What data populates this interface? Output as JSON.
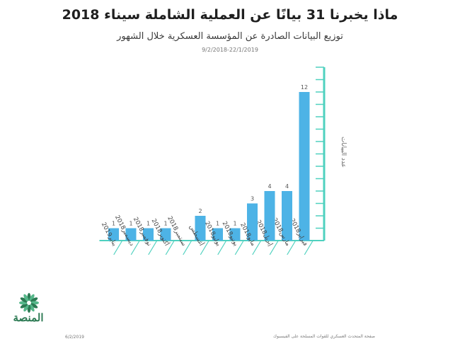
{
  "header": {
    "title": "ماذا يخبرنا 31 بيانًا عن العملية الشاملة سيناء 2018",
    "subtitle": "توزيع البيانات الصادرة عن المؤسسة العسكرية خلال الشهور",
    "period": "9/2/2018-22/1/2019"
  },
  "footer": {
    "date": "6/2/2019",
    "source": "صفحة المتحدث العسكري للقوات المسلحة على الفيسبوك",
    "logo_text": "المنصة"
  },
  "colors": {
    "bar": "#4db3e6",
    "axis": "#4fd1bf",
    "text": "#444444",
    "logo": "#2c7a53"
  },
  "chart_data": {
    "type": "bar",
    "categories": [
      "فبراير2018",
      "مارس2018",
      "إبريل2018",
      "مايو2018",
      "يونيو2018",
      "يوليو2018",
      "أغسطس",
      "سبتمبر2018",
      "أكتوبر2018",
      "نوفمبر2018",
      "ديسمبر2018",
      "يناير2019"
    ],
    "values": [
      12,
      4,
      4,
      3,
      1,
      1,
      2,
      0,
      1,
      1,
      1,
      1
    ],
    "ylabel": "عدد البيانات",
    "ylim": [
      0,
      14
    ],
    "grid": false,
    "axis_position": "right",
    "value_labels": true
  }
}
